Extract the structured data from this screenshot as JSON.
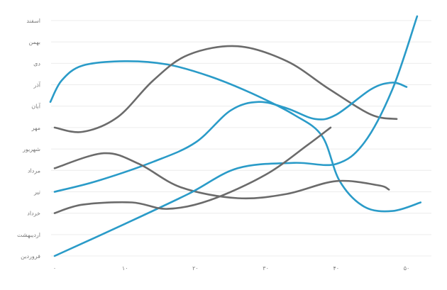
{
  "chart_data": {
    "type": "line",
    "title": "",
    "xlabel": "",
    "ylabel": "",
    "xlim": [
      0,
      51
    ],
    "ylim": [
      0,
      11
    ],
    "grid": true,
    "legend": "none",
    "x_ticks": [
      {
        "value": 0,
        "label": "۰"
      },
      {
        "value": 10,
        "label": "۱۰"
      },
      {
        "value": 20,
        "label": "۲۰"
      },
      {
        "value": 30,
        "label": "۳۰"
      },
      {
        "value": 40,
        "label": "۴۰"
      },
      {
        "value": 50,
        "label": "۵۰"
      }
    ],
    "y_ticks": [
      {
        "value": 0,
        "label": "فروردین"
      },
      {
        "value": 1,
        "label": "اردیبهشت"
      },
      {
        "value": 2,
        "label": "خرداد"
      },
      {
        "value": 3,
        "label": "تیر"
      },
      {
        "value": 4,
        "label": "مرداد"
      },
      {
        "value": 5,
        "label": "شهریور"
      },
      {
        "value": 6,
        "label": "مهر"
      },
      {
        "value": 7,
        "label": "آبان"
      },
      {
        "value": 8,
        "label": "آذر"
      },
      {
        "value": 9,
        "label": "دی"
      },
      {
        "value": 10,
        "label": "بهمن"
      },
      {
        "value": 11,
        "label": "اسفند"
      }
    ],
    "series": [
      {
        "color": "#2a9bc8",
        "points": [
          [
            -0.6,
            7.2
          ],
          [
            1,
            8.2
          ],
          [
            4,
            8.9
          ],
          [
            10,
            9.1
          ],
          [
            16,
            8.95
          ],
          [
            22,
            8.4
          ],
          [
            28,
            7.6
          ],
          [
            34,
            6.6
          ],
          [
            38,
            5.6
          ],
          [
            40.5,
            3.5
          ],
          [
            44,
            2.3
          ],
          [
            48,
            2.1
          ],
          [
            52,
            2.5
          ]
        ]
      },
      {
        "color": "#6b6b6b",
        "points": [
          [
            0,
            6.0
          ],
          [
            4,
            5.8
          ],
          [
            9,
            6.5
          ],
          [
            14,
            8.2
          ],
          [
            19,
            9.4
          ],
          [
            26,
            9.8
          ],
          [
            33,
            9.1
          ],
          [
            39,
            7.8
          ],
          [
            45,
            6.6
          ],
          [
            48.6,
            6.4
          ]
        ]
      },
      {
        "color": "#2a9bc8",
        "points": [
          [
            0,
            3.0
          ],
          [
            6,
            3.5
          ],
          [
            14,
            4.4
          ],
          [
            20,
            5.3
          ],
          [
            25,
            6.8
          ],
          [
            29,
            7.2
          ],
          [
            33,
            6.9
          ],
          [
            37,
            6.4
          ],
          [
            40,
            6.6
          ],
          [
            45,
            7.8
          ],
          [
            48,
            8.1
          ],
          [
            50,
            7.9
          ]
        ]
      },
      {
        "color": "#6b6b6b",
        "points": [
          [
            0,
            4.1
          ],
          [
            7,
            4.8
          ],
          [
            12,
            4.3
          ],
          [
            18,
            3.2
          ],
          [
            26,
            2.7
          ],
          [
            33,
            2.9
          ],
          [
            40,
            3.5
          ],
          [
            46,
            3.3
          ],
          [
            47.5,
            3.1
          ]
        ]
      },
      {
        "color": "#2a9bc8",
        "points": [
          [
            0,
            0.0
          ],
          [
            10,
            1.5
          ],
          [
            19,
            2.9
          ],
          [
            26,
            4.1
          ],
          [
            34,
            4.35
          ],
          [
            40,
            4.3
          ],
          [
            44,
            5.3
          ],
          [
            48,
            7.8
          ],
          [
            51.5,
            11.2
          ]
        ]
      },
      {
        "color": "#6b6b6b",
        "points": [
          [
            0,
            2.0
          ],
          [
            4,
            2.4
          ],
          [
            11,
            2.5
          ],
          [
            16,
            2.2
          ],
          [
            22,
            2.6
          ],
          [
            30,
            3.8
          ],
          [
            36,
            5.2
          ],
          [
            39.2,
            6.0
          ]
        ]
      }
    ]
  }
}
